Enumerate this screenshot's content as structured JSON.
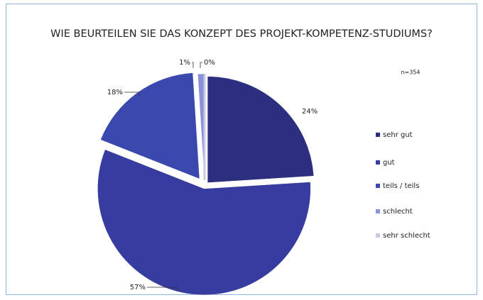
{
  "chart_data": {
    "type": "pie",
    "title": "WIE BEURTEILEN SIE DAS KONZEPT DES PROJEKT-KOMPETENZ-STUDIUMS?",
    "note": "n=354",
    "categories": [
      "sehr gut",
      "gut",
      "teils / teils",
      "schlecht",
      "sehr schlecht"
    ],
    "values": [
      24,
      57,
      18,
      1,
      0
    ],
    "value_labels": [
      "24%",
      "57%",
      "18%",
      "1%",
      "0%"
    ],
    "colors": [
      "#2c2f80",
      "#373ca0",
      "#3b48ad",
      "#8b91d9",
      "#c9c9e2"
    ],
    "legend": "right"
  }
}
